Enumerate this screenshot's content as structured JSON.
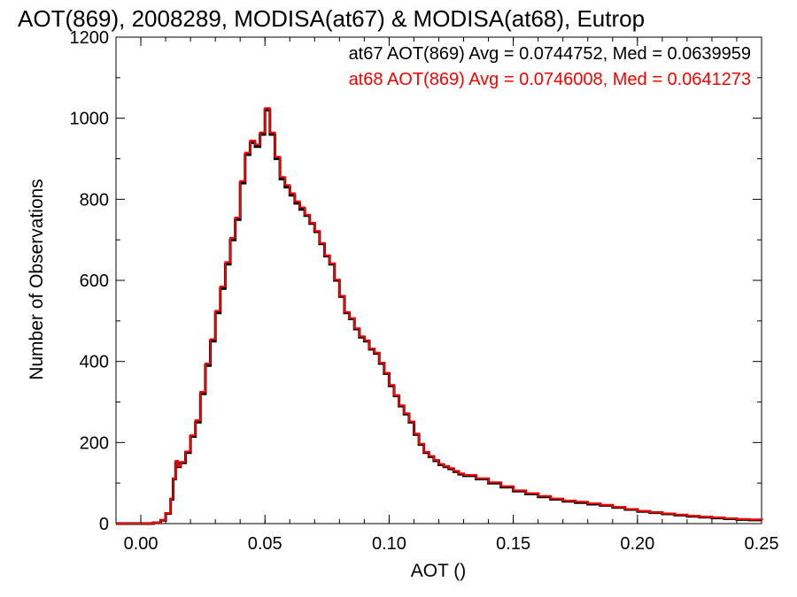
{
  "chart_data": {
    "type": "line",
    "title": "AOT(869), 2008289, MODISA(at67) & MODISA(at68), Eutrop",
    "xlabel": "AOT ()",
    "ylabel": "Number of Observations",
    "xlim": [
      -0.01,
      0.25
    ],
    "ylim": [
      0,
      1200
    ],
    "xticks": [
      0.0,
      0.05,
      0.1,
      0.15,
      0.2,
      0.25
    ],
    "xtick_labels": [
      "0.00",
      "0.05",
      "0.10",
      "0.15",
      "0.20",
      "0.25"
    ],
    "yticks": [
      0,
      200,
      400,
      600,
      800,
      1000,
      1200
    ],
    "ytick_labels": [
      "0",
      "200",
      "400",
      "600",
      "800",
      "1000",
      "1200"
    ],
    "grid": false,
    "legend_position": "top-right",
    "colors": {
      "at67": "#000000",
      "at68": "#ff0000"
    },
    "x": [
      -0.01,
      0.0,
      0.005,
      0.008,
      0.01,
      0.012,
      0.013,
      0.014,
      0.015,
      0.016,
      0.018,
      0.02,
      0.022,
      0.024,
      0.026,
      0.028,
      0.03,
      0.032,
      0.034,
      0.036,
      0.038,
      0.04,
      0.042,
      0.044,
      0.046,
      0.048,
      0.05,
      0.052,
      0.054,
      0.056,
      0.058,
      0.06,
      0.062,
      0.064,
      0.066,
      0.068,
      0.07,
      0.072,
      0.074,
      0.076,
      0.078,
      0.08,
      0.082,
      0.084,
      0.086,
      0.088,
      0.09,
      0.092,
      0.094,
      0.096,
      0.098,
      0.1,
      0.102,
      0.104,
      0.106,
      0.108,
      0.11,
      0.112,
      0.114,
      0.116,
      0.118,
      0.12,
      0.122,
      0.124,
      0.126,
      0.128,
      0.13,
      0.135,
      0.14,
      0.145,
      0.15,
      0.155,
      0.16,
      0.165,
      0.17,
      0.175,
      0.18,
      0.185,
      0.19,
      0.195,
      0.2,
      0.205,
      0.21,
      0.215,
      0.22,
      0.225,
      0.23,
      0.235,
      0.24,
      0.245,
      0.25
    ],
    "series": [
      {
        "name": "at67",
        "values": [
          0,
          0,
          2,
          8,
          25,
          60,
          110,
          150,
          140,
          150,
          175,
          215,
          250,
          320,
          390,
          450,
          520,
          580,
          640,
          700,
          750,
          840,
          910,
          940,
          930,
          960,
          1020,
          960,
          900,
          850,
          830,
          810,
          790,
          775,
          760,
          740,
          720,
          690,
          660,
          640,
          600,
          560,
          520,
          505,
          480,
          460,
          450,
          430,
          420,
          395,
          370,
          340,
          315,
          290,
          270,
          250,
          220,
          195,
          175,
          165,
          155,
          145,
          140,
          135,
          128,
          122,
          118,
          110,
          100,
          90,
          80,
          73,
          66,
          60,
          55,
          52,
          48,
          45,
          40,
          35,
          30,
          27,
          24,
          21,
          18,
          16,
          14,
          12,
          10,
          9,
          8
        ]
      },
      {
        "name": "at68",
        "values": [
          0,
          0,
          2,
          9,
          26,
          62,
          112,
          155,
          142,
          152,
          178,
          218,
          255,
          325,
          395,
          455,
          525,
          585,
          645,
          705,
          755,
          845,
          915,
          945,
          935,
          965,
          1025,
          965,
          905,
          855,
          835,
          815,
          795,
          780,
          762,
          742,
          722,
          692,
          662,
          642,
          602,
          562,
          522,
          507,
          482,
          462,
          452,
          432,
          422,
          397,
          372,
          342,
          317,
          292,
          272,
          252,
          222,
          197,
          177,
          167,
          157,
          147,
          142,
          137,
          130,
          124,
          120,
          112,
          102,
          92,
          82,
          75,
          68,
          62,
          57,
          54,
          50,
          46,
          41,
          36,
          31,
          28,
          25,
          22,
          19,
          17,
          15,
          13,
          11,
          10,
          9
        ]
      }
    ],
    "annotations": [
      {
        "text": "at67 AOT(869) Avg = 0.0744752, Med = 0.0639959",
        "color": "#000000"
      },
      {
        "text": "at68 AOT(869) Avg = 0.0746008, Med = 0.0641273",
        "color": "#ff0000"
      }
    ]
  }
}
